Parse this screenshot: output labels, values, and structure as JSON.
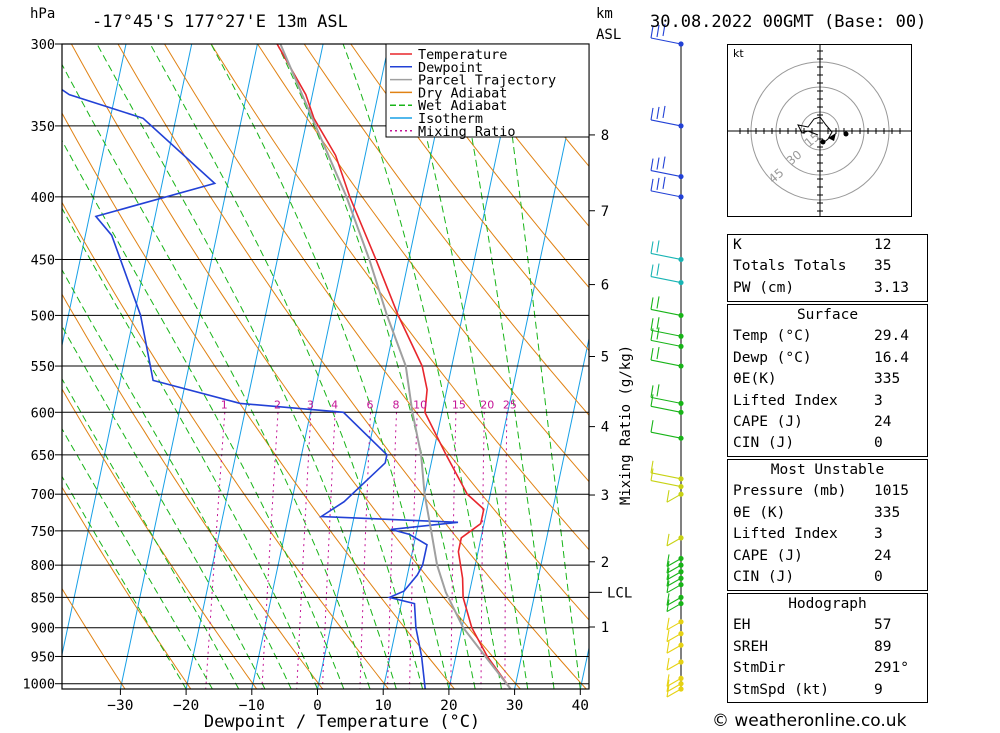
{
  "header": {
    "unit_left": "hPa",
    "location": "-17°45'S 177°27'E 13m ASL",
    "km_label": "km",
    "asl_label": "ASL",
    "datetime": "30.08.2022 00GMT (Base: 00)"
  },
  "legend": [
    "Temperature",
    "Dewpoint",
    "Parcel Trajectory",
    "Dry Adiabat",
    "Wet Adiabat",
    "Isotherm",
    "Mixing Ratio"
  ],
  "colors": {
    "temperature": "#e8262c",
    "dewpoint": "#2241d6",
    "parcel": "#a0a0a0",
    "dry_adiabat": "#e08214",
    "wet_adiabat": "#18b418",
    "isotherm": "#18a0e6",
    "mixing_ratio": "#c41496"
  },
  "chart_data": {
    "type": "line",
    "xlabel": "Dewpoint / Temperature (°C)",
    "ylabel": "hPa",
    "x_ticks": [
      -30,
      -20,
      -10,
      0,
      10,
      20,
      30,
      40
    ],
    "pressure_levels": [
      300,
      350,
      400,
      450,
      500,
      550,
      600,
      650,
      700,
      750,
      800,
      850,
      900,
      950,
      1000
    ],
    "height_km_ticks": [
      1,
      2,
      3,
      4,
      5,
      6,
      7,
      8
    ],
    "lcl_label": "LCL",
    "lcl_pressure": 842,
    "mixing_ratio_axis_label": "Mixing Ratio (g/kg)",
    "mixing_ratio_values": [
      1,
      2,
      3,
      4,
      6,
      8,
      10,
      15,
      20,
      25
    ],
    "series": [
      {
        "name": "Temperature",
        "points": [
          [
            1010,
            29.4
          ],
          [
            950,
            24.8
          ],
          [
            900,
            21.5
          ],
          [
            850,
            19.2
          ],
          [
            820,
            18.5
          ],
          [
            780,
            17.0
          ],
          [
            760,
            17.0
          ],
          [
            740,
            19.5
          ],
          [
            720,
            19.5
          ],
          [
            700,
            16.5
          ],
          [
            650,
            12.0
          ],
          [
            600,
            7.4
          ],
          [
            575,
            7.0
          ],
          [
            550,
            5.5
          ],
          [
            500,
            0.2
          ],
          [
            450,
            -5.0
          ],
          [
            400,
            -11.0
          ],
          [
            370,
            -14.5
          ],
          [
            345,
            -19.0
          ],
          [
            330,
            -21.0
          ],
          [
            300,
            -27.0
          ]
        ]
      },
      {
        "name": "Dewpoint",
        "points": [
          [
            1010,
            16.4
          ],
          [
            950,
            14.8
          ],
          [
            900,
            13.0
          ],
          [
            860,
            12.0
          ],
          [
            850,
            8.0
          ],
          [
            840,
            10.0
          ],
          [
            815,
            11.5
          ],
          [
            800,
            12.0
          ],
          [
            770,
            12.0
          ],
          [
            755,
            9.0
          ],
          [
            748,
            6.0
          ],
          [
            738,
            16.0
          ],
          [
            730,
            -5.0
          ],
          [
            710,
            -2.0
          ],
          [
            660,
            3.0
          ],
          [
            650,
            3.0
          ],
          [
            600,
            -5.0
          ],
          [
            590,
            -21.0
          ],
          [
            565,
            -35.0
          ],
          [
            500,
            -39.0
          ],
          [
            430,
            -46.0
          ],
          [
            415,
            -49.0
          ],
          [
            390,
            -32.0
          ],
          [
            345,
            -45.0
          ],
          [
            330,
            -57.0
          ],
          [
            300,
            -70.0
          ]
        ]
      },
      {
        "name": "Parcel Trajectory",
        "points": [
          [
            1010,
            29.4
          ],
          [
            950,
            24.5
          ],
          [
            900,
            20.2
          ],
          [
            842,
            16.4
          ],
          [
            800,
            14.2
          ],
          [
            750,
            12.2
          ],
          [
            700,
            10.0
          ],
          [
            650,
            8.2
          ],
          [
            600,
            5.5
          ],
          [
            550,
            3.0
          ],
          [
            500,
            -1.5
          ],
          [
            450,
            -6.0
          ],
          [
            400,
            -11.5
          ],
          [
            350,
            -18.5
          ],
          [
            300,
            -26.5
          ]
        ]
      }
    ]
  },
  "wind_barb_levels": [
    300,
    350,
    385,
    400,
    450,
    470,
    500,
    520,
    530,
    550,
    590,
    600,
    630,
    680,
    690,
    700,
    760,
    790,
    800,
    810,
    820,
    830,
    850,
    860,
    890,
    910,
    930,
    960,
    990,
    1000,
    1010
  ],
  "hodograph": {
    "unit": "kt",
    "ring_labels": [
      "15",
      "30",
      "45"
    ]
  },
  "indices": [
    {
      "k": "K",
      "v": "12"
    },
    {
      "k": "Totals Totals",
      "v": "35"
    },
    {
      "k": "PW (cm)",
      "v": "3.13"
    }
  ],
  "surface": {
    "title": "Surface",
    "rows": [
      {
        "k": "Temp (°C)",
        "v": "29.4"
      },
      {
        "k": "Dewp (°C)",
        "v": "16.4"
      },
      {
        "k": "θE(K)",
        "v": "335"
      },
      {
        "k": "Lifted Index",
        "v": "3"
      },
      {
        "k": "CAPE (J)",
        "v": "24"
      },
      {
        "k": "CIN (J)",
        "v": "0"
      }
    ]
  },
  "most_unstable": {
    "title": "Most Unstable",
    "rows": [
      {
        "k": "Pressure (mb)",
        "v": "1015"
      },
      {
        "k": "θE (K)",
        "v": "335"
      },
      {
        "k": "Lifted Index",
        "v": "3"
      },
      {
        "k": "CAPE (J)",
        "v": "24"
      },
      {
        "k": "CIN (J)",
        "v": "0"
      }
    ]
  },
  "hodograph_table": {
    "title": "Hodograph",
    "rows": [
      {
        "k": "EH",
        "v": "57"
      },
      {
        "k": "SREH",
        "v": "89"
      },
      {
        "k": "StmDir",
        "v": "291°"
      },
      {
        "k": "StmSpd (kt)",
        "v": "9"
      }
    ]
  },
  "credit": "© weatheronline.co.uk"
}
